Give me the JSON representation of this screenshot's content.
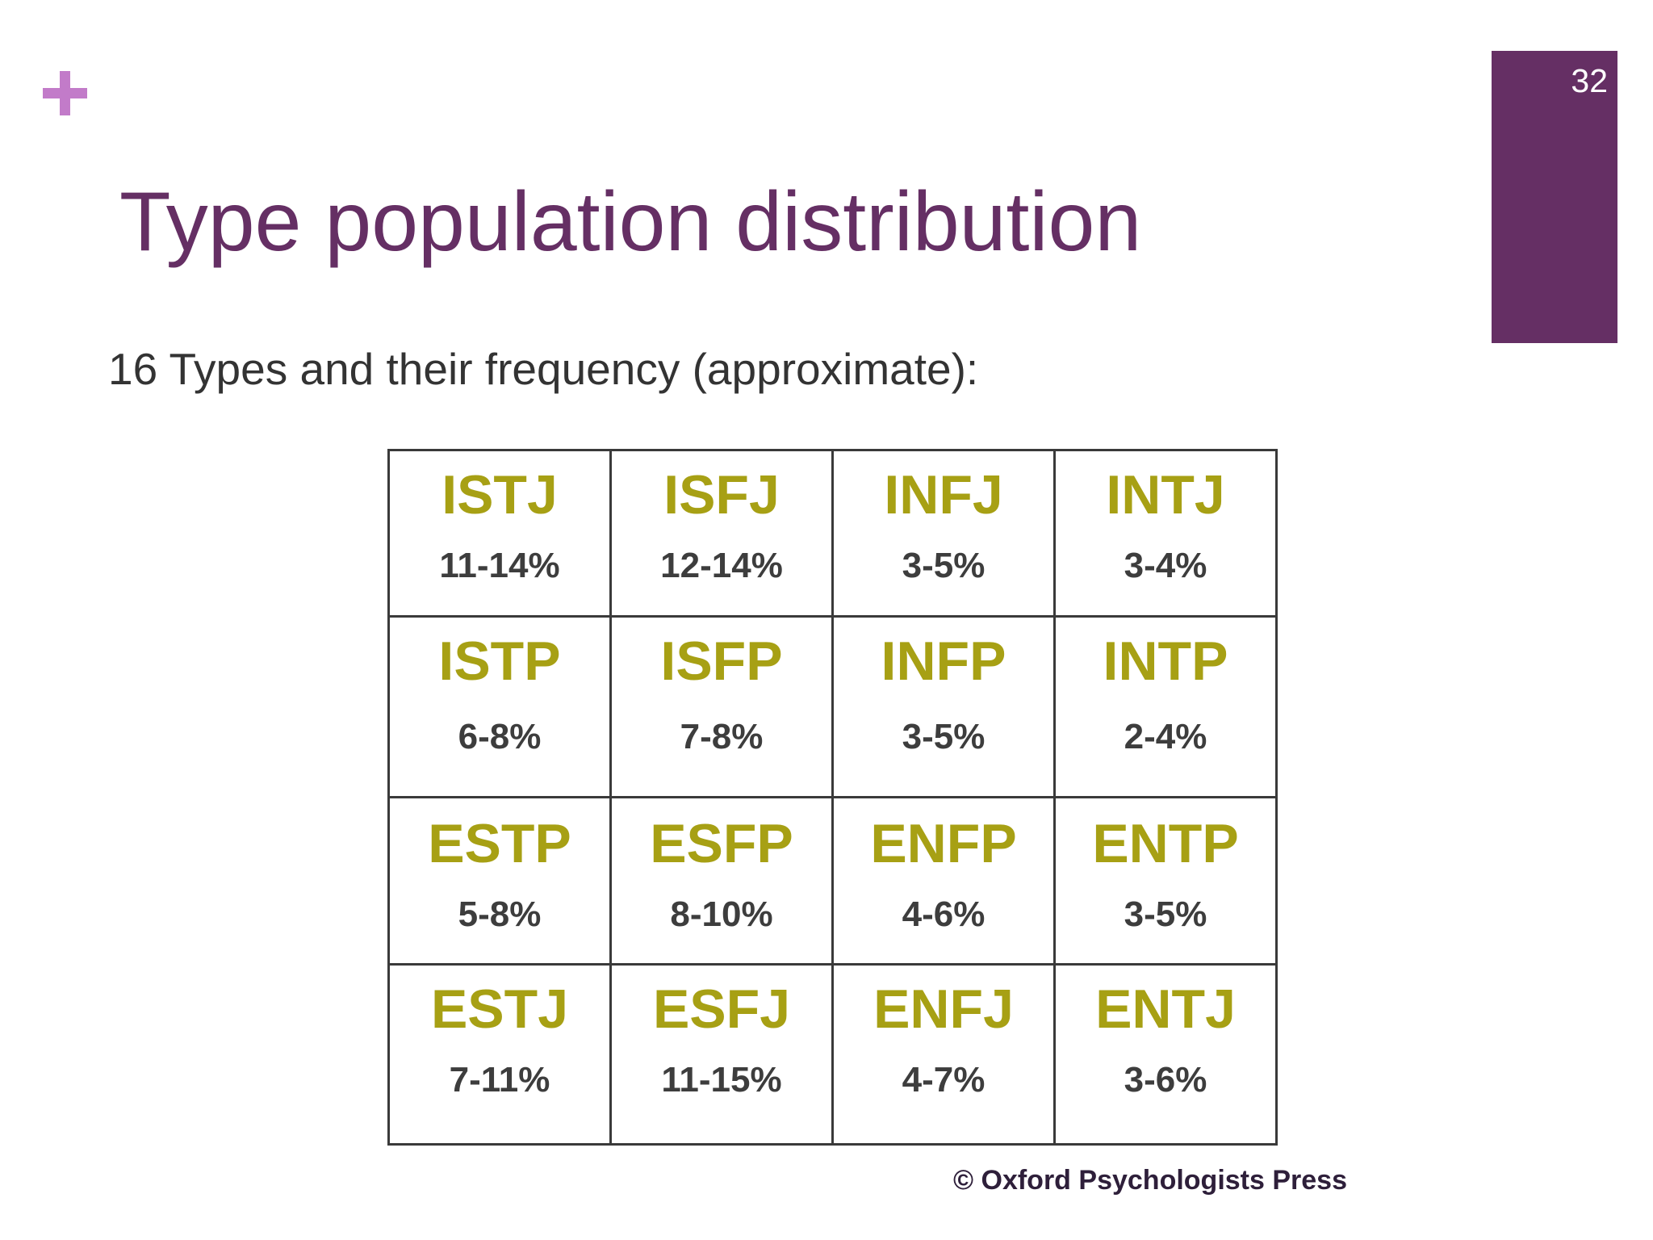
{
  "slide": {
    "page_number": "32",
    "title": "Type population distribution",
    "subtitle": "16 Types and their frequency (approximate):",
    "copyright": "© Oxford Psychologists Press",
    "icon": "plus-icon",
    "colors": {
      "accent_plus": "#c27bc9",
      "title": "#652f64",
      "page_bar": "#652f64",
      "type_code": "#a7a014",
      "frequency": "#3d3d3d"
    }
  },
  "grid": {
    "rows": [
      [
        {
          "type": "ISTJ",
          "freq": "11-14%"
        },
        {
          "type": "ISFJ",
          "freq": "12-14%"
        },
        {
          "type": "INFJ",
          "freq": "3-5%"
        },
        {
          "type": "INTJ",
          "freq": "3-4%"
        }
      ],
      [
        {
          "type": "ISTP",
          "freq": "6-8%"
        },
        {
          "type": "ISFP",
          "freq": "7-8%"
        },
        {
          "type": "INFP",
          "freq": "3-5%"
        },
        {
          "type": "INTP",
          "freq": "2-4%"
        }
      ],
      [
        {
          "type": "ESTP",
          "freq": "5-8%"
        },
        {
          "type": "ESFP",
          "freq": "8-10%"
        },
        {
          "type": "ENFP",
          "freq": "4-6%"
        },
        {
          "type": "ENTP",
          "freq": "3-5%"
        }
      ],
      [
        {
          "type": "ESTJ",
          "freq": "7-11%"
        },
        {
          "type": "ESFJ",
          "freq": "11-15%"
        },
        {
          "type": "ENFJ",
          "freq": "4-7%"
        },
        {
          "type": "ENTJ",
          "freq": "3-6%"
        }
      ]
    ]
  }
}
